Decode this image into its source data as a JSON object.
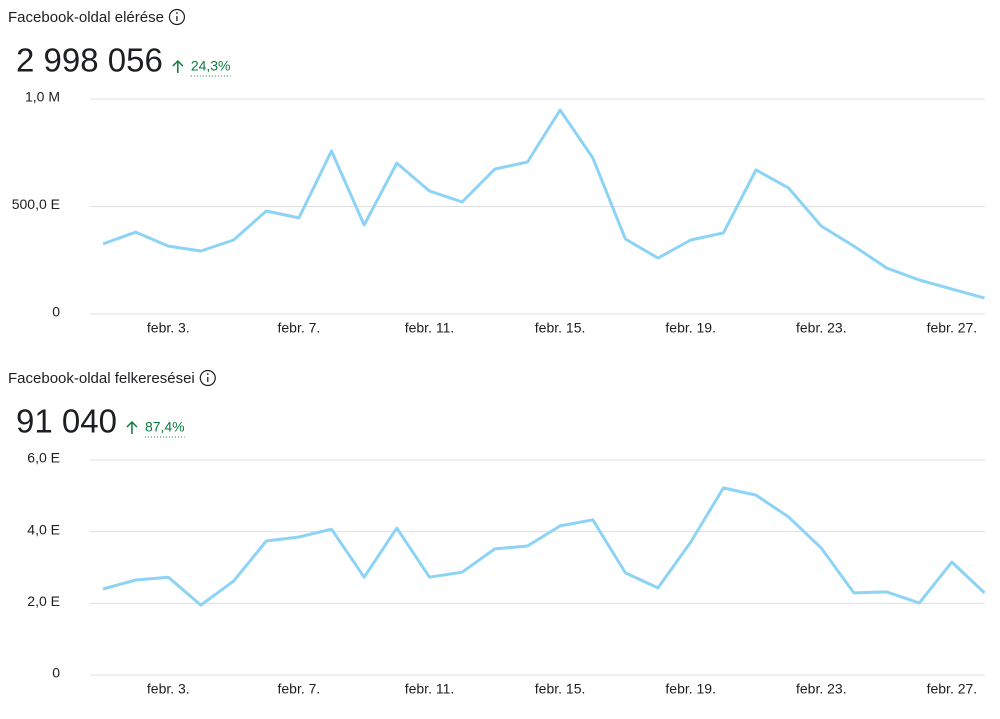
{
  "chart_data": [
    {
      "type": "line",
      "title": "Facebook-oldal elérése",
      "total": "2 998 056",
      "change": "24,3%",
      "categories": [
        null,
        null,
        "febr. 3.",
        null,
        null,
        null,
        "febr. 7.",
        null,
        null,
        null,
        "febr. 11.",
        null,
        null,
        null,
        "febr. 15.",
        null,
        null,
        null,
        "febr. 19.",
        null,
        null,
        null,
        "febr. 23.",
        null,
        null,
        null,
        "febr. 27.",
        null
      ],
      "values": [
        326000,
        381000,
        316000,
        293000,
        344000,
        479000,
        447000,
        758000,
        414000,
        702000,
        572000,
        521000,
        674000,
        707000,
        949000,
        726000,
        349000,
        260000,
        344000,
        377000,
        670000,
        586000,
        409000,
        316000,
        214000,
        158000,
        116000,
        74000
      ],
      "color": "#8dd3f6",
      "ylim": [
        0,
        1000000
      ],
      "yticks": [
        0,
        {
          "value": 500000,
          "label": "500,0 E"
        },
        {
          "value": 1000000,
          "label": "1,0 M"
        }
      ],
      "grid": true
    },
    {
      "type": "line",
      "title": "Facebook-oldal felkeresései",
      "total": "91 040",
      "change": "87,4%",
      "categories": [
        null,
        null,
        "febr. 3.",
        null,
        null,
        null,
        "febr. 7.",
        null,
        null,
        null,
        "febr. 11.",
        null,
        null,
        null,
        "febr. 15.",
        null,
        null,
        null,
        "febr. 19.",
        null,
        null,
        null,
        "febr. 23.",
        null,
        null,
        null,
        "febr. 27.",
        null
      ],
      "values": [
        2400,
        2650,
        2730,
        1950,
        2620,
        3740,
        3850,
        4070,
        2730,
        4100,
        2730,
        2870,
        3520,
        3600,
        4160,
        4330,
        2850,
        2430,
        3710,
        5220,
        5020,
        4410,
        3540,
        2290,
        2320,
        2010,
        3150,
        2290
      ],
      "color": "#8dd3f6",
      "ylim": [
        0,
        6000
      ],
      "yticks": [
        0,
        {
          "value": 2000,
          "label": "2,0 E"
        },
        {
          "value": 4000,
          "label": "4,0 E"
        },
        {
          "value": 6000,
          "label": "6,0 E"
        }
      ],
      "grid": true
    }
  ]
}
